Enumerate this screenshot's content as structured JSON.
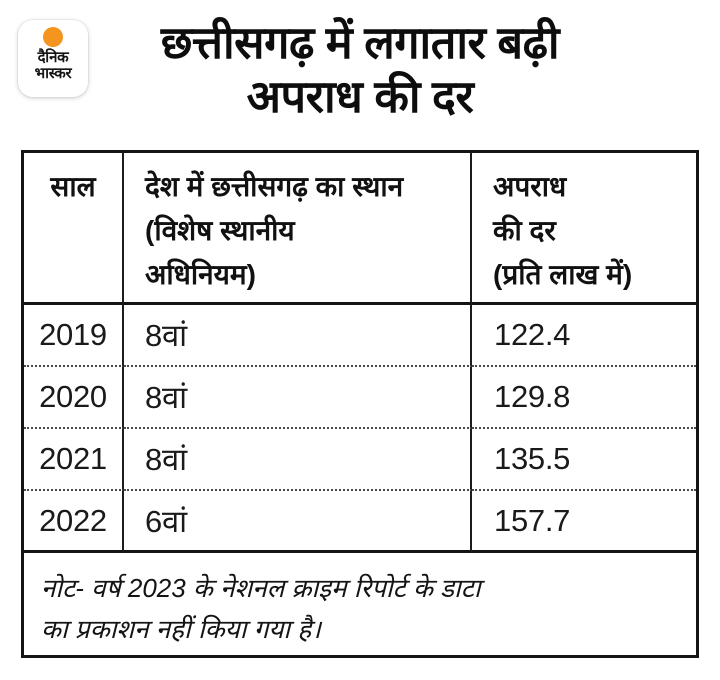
{
  "brand": {
    "logo_line1": "दैनिक",
    "logo_line2": "भास्कर",
    "logo_dot_color": "#F5941F"
  },
  "title": {
    "line1": "छत्तीसगढ़ में लगातार बढ़ी",
    "line2": "अपराध की दर"
  },
  "chart_data": {
    "type": "table",
    "title": "छत्तीसगढ़ में लगातार बढ़ी अपराध की दर",
    "columns": [
      "साल",
      "देश में छत्तीसगढ़ का स्थान (विशेष स्थानीय अधिनियम)",
      "अपराध की दर (प्रति लाख में)"
    ],
    "rows": [
      [
        "2019",
        "8वां",
        "122.4"
      ],
      [
        "2020",
        "8वां",
        "129.8"
      ],
      [
        "2021",
        "8वां",
        "135.5"
      ],
      [
        "2022",
        "6वां",
        "157.7"
      ]
    ],
    "years": [
      2019,
      2020,
      2021,
      2022
    ],
    "rank_in_country": [
      8,
      8,
      8,
      6
    ],
    "crime_rate_per_lakh": [
      122.4,
      129.8,
      135.5,
      157.7
    ],
    "note": "नोट- वर्ष 2023 के नेशनल क्राइम रिपोर्ट के डाटा का प्रकाशन नहीं किया गया है।"
  },
  "table": {
    "header": {
      "col1": "साल",
      "col2_lines": [
        "देश में छत्तीसगढ़ का स्थान",
        "(विशेष स्थानीय",
        "अधिनियम)"
      ],
      "col3_lines": [
        "अपराध",
        "की दर",
        "(प्रति लाख में)"
      ]
    },
    "note_lines": [
      "नोट- वर्ष 2023 के नेशनल क्राइम रिपोर्ट के डाटा",
      "का प्रकाशन नहीं किया गया है।"
    ]
  }
}
